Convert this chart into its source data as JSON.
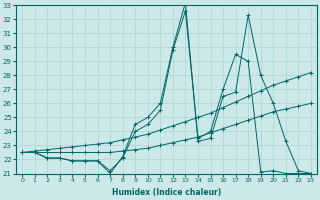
{
  "xlabel": "Humidex (Indice chaleur)",
  "bg_color": "#cce8e8",
  "line_color": "#006666",
  "grid_color": "#aad4d4",
  "xlim": [
    -0.5,
    23.5
  ],
  "ylim": [
    21,
    33
  ],
  "yticks": [
    21,
    22,
    23,
    24,
    25,
    26,
    27,
    28,
    29,
    30,
    31,
    32,
    33
  ],
  "xticks": [
    0,
    1,
    2,
    3,
    4,
    5,
    6,
    7,
    8,
    9,
    10,
    11,
    12,
    13,
    14,
    15,
    16,
    17,
    18,
    19,
    20,
    21,
    22,
    23
  ],
  "series": [
    {
      "x": [
        0,
        1,
        2,
        3,
        4,
        5,
        6,
        7,
        8,
        9,
        10,
        11,
        12,
        13,
        14,
        15,
        16,
        17,
        18,
        19,
        20,
        21,
        22,
        23
      ],
      "y": [
        22.5,
        22.5,
        22.1,
        22.1,
        21.9,
        21.9,
        21.9,
        21.0,
        22.2,
        24.5,
        25.0,
        26.0,
        30.0,
        33.2,
        23.3,
        23.5,
        26.5,
        26.8,
        32.3,
        28.0,
        26.0,
        23.3,
        21.2,
        21.0
      ]
    },
    {
      "x": [
        0,
        1,
        2,
        3,
        4,
        5,
        6,
        7,
        8,
        9,
        10,
        11,
        12,
        13,
        14,
        15,
        16,
        17,
        18,
        19,
        20,
        21,
        22,
        23
      ],
      "y": [
        22.5,
        22.5,
        22.1,
        22.1,
        21.9,
        21.9,
        21.9,
        21.2,
        22.1,
        24.0,
        24.5,
        25.5,
        29.8,
        32.6,
        23.5,
        24.0,
        27.0,
        29.5,
        29.0,
        21.1,
        21.2,
        21.0,
        21.0,
        21.0
      ]
    },
    {
      "x": [
        0,
        1,
        2,
        3,
        4,
        5,
        6,
        7,
        8,
        9,
        10,
        11,
        12,
        13,
        14,
        15,
        16,
        17,
        18,
        19,
        20,
        21,
        22,
        23
      ],
      "y": [
        22.5,
        22.6,
        22.7,
        22.8,
        22.9,
        23.0,
        23.1,
        23.2,
        23.4,
        23.6,
        23.8,
        24.1,
        24.4,
        24.7,
        25.0,
        25.3,
        25.7,
        26.1,
        26.5,
        26.9,
        27.3,
        27.6,
        27.9,
        28.2
      ]
    },
    {
      "x": [
        0,
        1,
        2,
        3,
        4,
        5,
        6,
        7,
        8,
        9,
        10,
        11,
        12,
        13,
        14,
        15,
        16,
        17,
        18,
        19,
        20,
        21,
        22,
        23
      ],
      "y": [
        22.5,
        22.5,
        22.5,
        22.5,
        22.5,
        22.5,
        22.5,
        22.5,
        22.6,
        22.7,
        22.8,
        23.0,
        23.2,
        23.4,
        23.6,
        23.9,
        24.2,
        24.5,
        24.8,
        25.1,
        25.4,
        25.6,
        25.8,
        26.0
      ]
    }
  ]
}
